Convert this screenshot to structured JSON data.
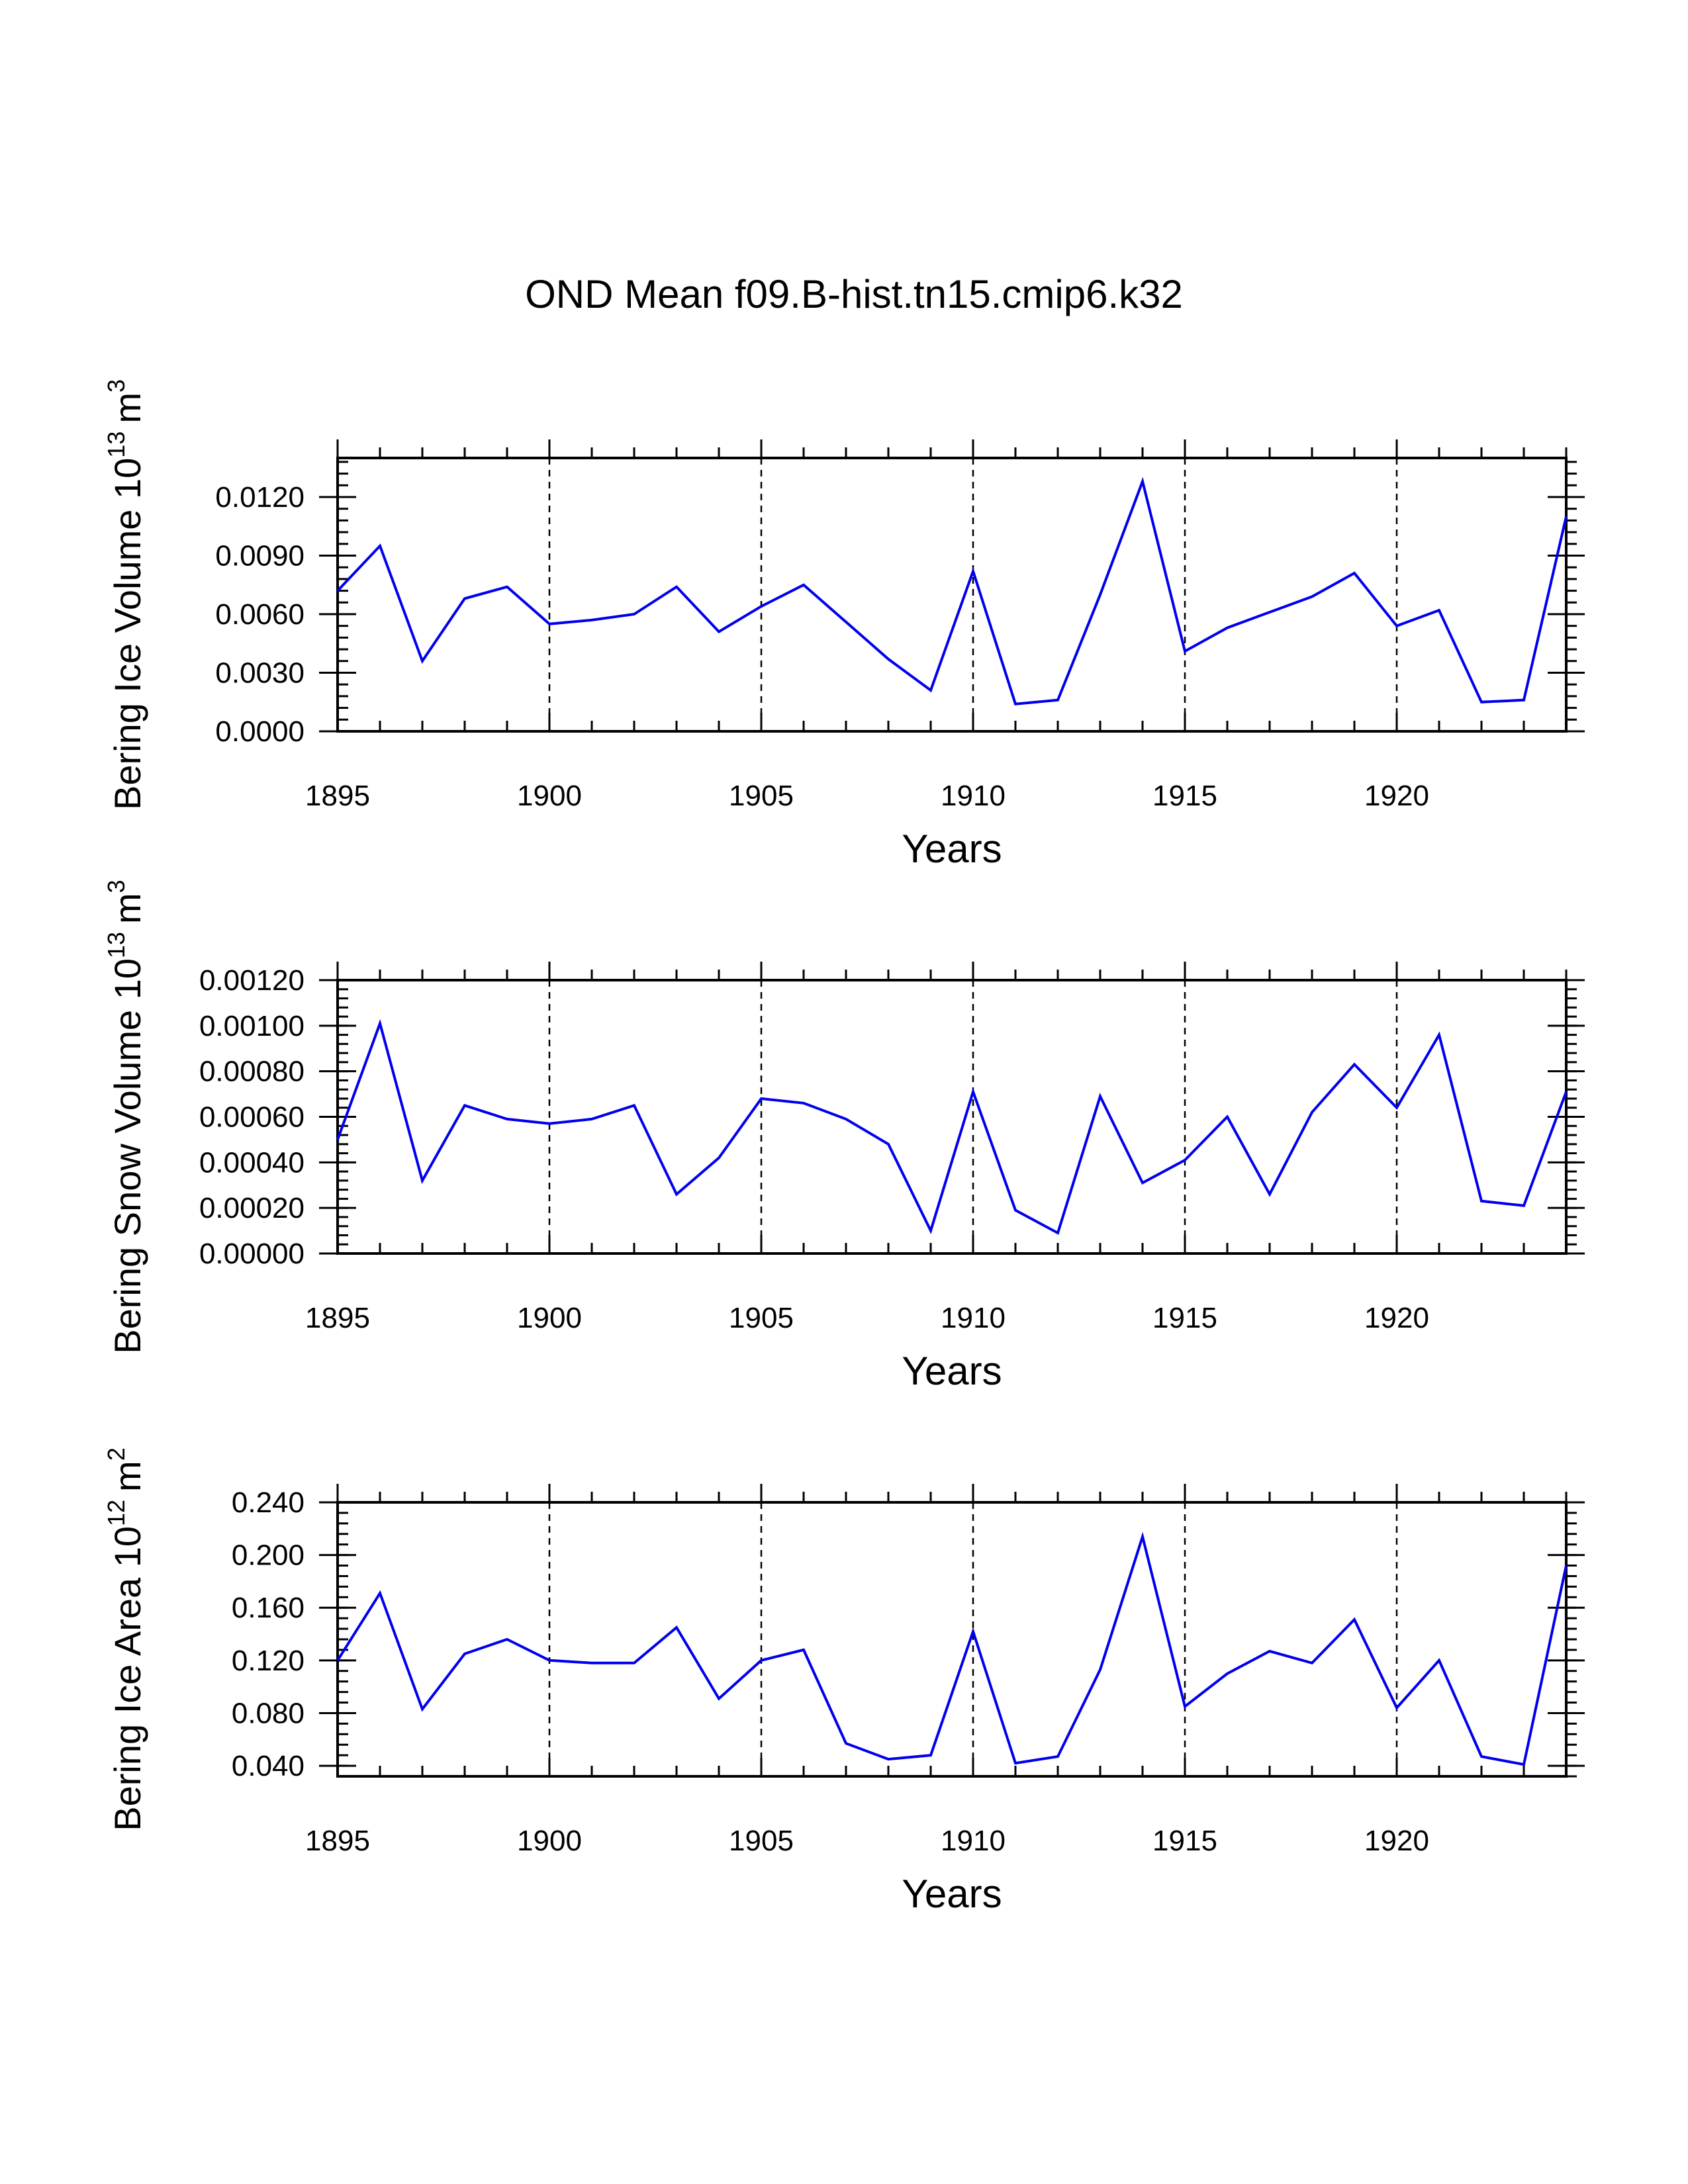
{
  "chart_data": [
    {
      "type": "line",
      "title": "OND Mean f09.B-hist.tn15.cmip6.k32",
      "xlabel": "Years",
      "ylabel": {
        "text": "Bering Ice Volume 10",
        "exponent": "13",
        "unit": "m",
        "unit_exponent": "3"
      },
      "xlim": [
        1895,
        1924
      ],
      "ylim": [
        0,
        0.014
      ],
      "x_ticks": [
        1895,
        1900,
        1905,
        1910,
        1915,
        1920
      ],
      "y_ticks": [
        "0.0000",
        "0.0030",
        "0.0060",
        "0.0090",
        "0.0120"
      ],
      "y_tick_values": [
        0,
        0.003,
        0.006,
        0.009,
        0.012
      ],
      "y_minor_step": 0.0006,
      "grid": "dashed vertical at major x ticks",
      "color": "#0000ee",
      "x": [
        1895,
        1896,
        1897,
        1898,
        1899,
        1900,
        1901,
        1902,
        1903,
        1904,
        1905,
        1906,
        1907,
        1908,
        1909,
        1910,
        1911,
        1912,
        1913,
        1914,
        1915,
        1916,
        1917,
        1918,
        1919,
        1920,
        1921,
        1922,
        1923,
        1924
      ],
      "values": [
        0.0072,
        0.0095,
        0.0036,
        0.0068,
        0.0074,
        0.0055,
        0.0057,
        0.006,
        0.0074,
        0.0051,
        0.0064,
        0.0075,
        0.0056,
        0.0037,
        0.0021,
        0.0082,
        0.0014,
        0.0016,
        0.007,
        0.0128,
        0.0041,
        0.0053,
        0.0061,
        0.0069,
        0.0081,
        0.0054,
        0.0062,
        0.0015,
        0.0016,
        0.011
      ]
    },
    {
      "type": "line",
      "xlabel": "Years",
      "ylabel": {
        "text": "Bering Snow Volume 10",
        "exponent": "13",
        "unit": "m",
        "unit_exponent": "3"
      },
      "xlim": [
        1895,
        1924
      ],
      "ylim": [
        0,
        0.0012
      ],
      "x_ticks": [
        1895,
        1900,
        1905,
        1910,
        1915,
        1920
      ],
      "y_ticks": [
        "0.00000",
        "0.00020",
        "0.00040",
        "0.00060",
        "0.00080",
        "0.00100",
        "0.00120"
      ],
      "y_tick_values": [
        0,
        0.0002,
        0.0004,
        0.0006,
        0.0008,
        0.001,
        0.0012
      ],
      "y_minor_step": 4e-05,
      "grid": "dashed vertical at major x ticks",
      "color": "#0000ee",
      "x": [
        1895,
        1896,
        1897,
        1898,
        1899,
        1900,
        1901,
        1902,
        1903,
        1904,
        1905,
        1906,
        1907,
        1908,
        1909,
        1910,
        1911,
        1912,
        1913,
        1914,
        1915,
        1916,
        1917,
        1918,
        1919,
        1920,
        1921,
        1922,
        1923,
        1924
      ],
      "values": [
        0.0005,
        0.00101,
        0.00032,
        0.00065,
        0.00059,
        0.00057,
        0.00059,
        0.00065,
        0.00026,
        0.00042,
        0.00068,
        0.00066,
        0.00059,
        0.00048,
        0.0001,
        0.00071,
        0.00019,
        9e-05,
        0.00069,
        0.00031,
        0.00041,
        0.0006,
        0.00026,
        0.00062,
        0.00083,
        0.00064,
        0.00096,
        0.00023,
        0.00021,
        0.00071
      ]
    },
    {
      "type": "line",
      "xlabel": "Years",
      "ylabel": {
        "text": "Bering Ice Area 10",
        "exponent": "12",
        "unit": "m",
        "unit_exponent": "2"
      },
      "xlim": [
        1895,
        1924
      ],
      "ylim": [
        0.032,
        0.24
      ],
      "x_ticks": [
        1895,
        1900,
        1905,
        1910,
        1915,
        1920
      ],
      "y_ticks": [
        "0.040",
        "0.080",
        "0.120",
        "0.160",
        "0.200",
        "0.240"
      ],
      "y_tick_values": [
        0.04,
        0.08,
        0.12,
        0.16,
        0.2,
        0.24
      ],
      "y_minor_step": 0.008,
      "grid": "dashed vertical at major x ticks",
      "color": "#0000ee",
      "x": [
        1895,
        1896,
        1897,
        1898,
        1899,
        1900,
        1901,
        1902,
        1903,
        1904,
        1905,
        1906,
        1907,
        1908,
        1909,
        1910,
        1911,
        1912,
        1913,
        1914,
        1915,
        1916,
        1917,
        1918,
        1919,
        1920,
        1921,
        1922,
        1923,
        1924
      ],
      "values": [
        0.12,
        0.171,
        0.083,
        0.125,
        0.136,
        0.12,
        0.118,
        0.118,
        0.145,
        0.091,
        0.12,
        0.128,
        0.057,
        0.045,
        0.048,
        0.142,
        0.042,
        0.047,
        0.113,
        0.214,
        0.085,
        0.11,
        0.127,
        0.118,
        0.151,
        0.084,
        0.12,
        0.047,
        0.041,
        0.192
      ]
    }
  ]
}
